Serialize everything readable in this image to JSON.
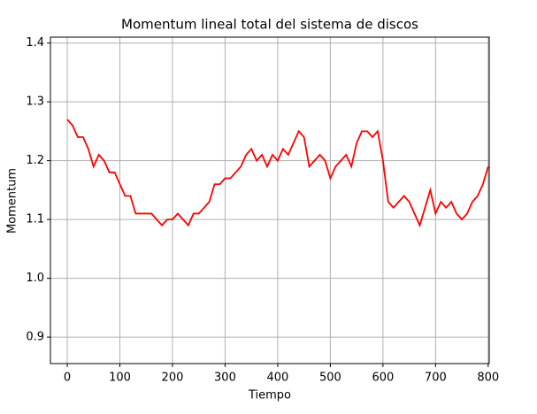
{
  "chart_data": {
    "type": "line",
    "title": "Momentum lineal total del sistema de discos",
    "xlabel": "Tiempo",
    "ylabel": "Momentum",
    "x": [
      0,
      10,
      20,
      30,
      40,
      50,
      60,
      70,
      80,
      90,
      100,
      110,
      120,
      130,
      140,
      150,
      160,
      170,
      180,
      190,
      200,
      210,
      220,
      230,
      240,
      250,
      260,
      270,
      280,
      290,
      300,
      310,
      320,
      330,
      340,
      350,
      360,
      370,
      380,
      390,
      400,
      410,
      420,
      430,
      440,
      450,
      460,
      470,
      480,
      490,
      500,
      510,
      520,
      530,
      540,
      550,
      560,
      570,
      580,
      590,
      600,
      610,
      620,
      630,
      640,
      650,
      660,
      670,
      680,
      690,
      700,
      710,
      720,
      730,
      740,
      750,
      760,
      770,
      780,
      790,
      800
    ],
    "series": [
      {
        "name": "Momentum",
        "color": "#ff0000",
        "values": [
          1.27,
          1.26,
          1.24,
          1.24,
          1.22,
          1.19,
          1.21,
          1.2,
          1.18,
          1.18,
          1.16,
          1.14,
          1.14,
          1.11,
          1.11,
          1.11,
          1.11,
          1.1,
          1.09,
          1.1,
          1.1,
          1.11,
          1.1,
          1.09,
          1.11,
          1.11,
          1.12,
          1.13,
          1.16,
          1.16,
          1.17,
          1.17,
          1.18,
          1.19,
          1.21,
          1.22,
          1.2,
          1.21,
          1.19,
          1.21,
          1.2,
          1.22,
          1.21,
          1.23,
          1.25,
          1.24,
          1.19,
          1.2,
          1.21,
          1.2,
          1.17,
          1.19,
          1.2,
          1.21,
          1.19,
          1.23,
          1.25,
          1.25,
          1.24,
          1.25,
          1.2,
          1.13,
          1.12,
          1.13,
          1.14,
          1.13,
          1.11,
          1.09,
          1.12,
          1.15,
          1.11,
          1.13,
          1.12,
          1.13,
          1.11,
          1.1,
          1.11,
          1.13,
          1.14,
          1.16,
          1.19
        ]
      }
    ],
    "xlim": [
      -32,
      802
    ],
    "ylim": [
      0.855,
      1.41
    ],
    "xticks": [
      0,
      100,
      200,
      300,
      400,
      500,
      600,
      700,
      800
    ],
    "yticks": [
      0.9,
      {
        "value": 1,
        "label": "1.0"
      },
      1.1,
      1.2,
      1.3,
      1.4
    ],
    "grid": true
  }
}
